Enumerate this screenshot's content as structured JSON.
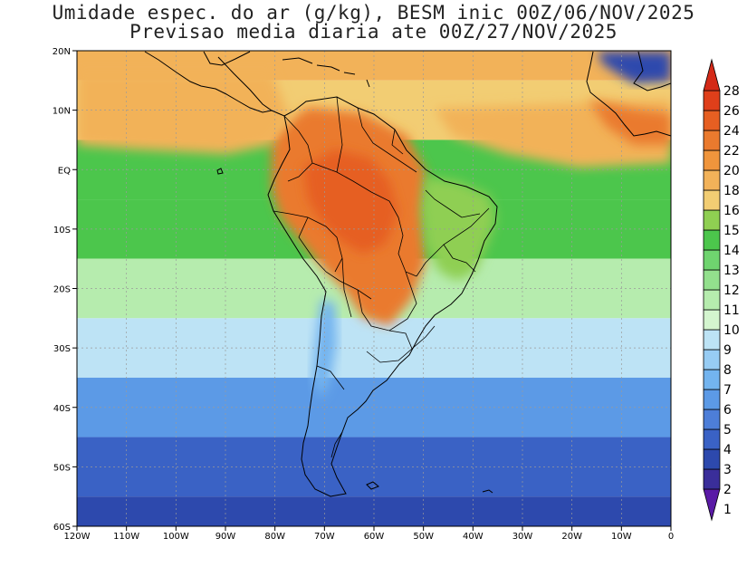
{
  "title_line1": "Umidade espec. do ar (g/kg), BESM inic 00Z/06/NOV/2025",
  "title_line2": "Previsao media diaria ate 00Z/27/NOV/2025",
  "lat_labels": [
    "20N",
    "10N",
    "EQ",
    "10S",
    "20S",
    "30S",
    "40S",
    "50S",
    "60S"
  ],
  "lon_labels": [
    "120W",
    "110W",
    "100W",
    "90W",
    "80W",
    "70W",
    "60W",
    "50W",
    "40W",
    "30W",
    "20W",
    "10W",
    "0"
  ],
  "colorbar": {
    "labels": [
      "1",
      "2",
      "3",
      "4",
      "5",
      "6",
      "7",
      "8",
      "9",
      "10",
      "11",
      "12",
      "13",
      "14",
      "15",
      "16",
      "18",
      "20",
      "22",
      "24",
      "26",
      "28"
    ],
    "colors": [
      "#5a1aa6",
      "#3a2e9a",
      "#2d49ad",
      "#3a62c5",
      "#4d7ed8",
      "#5c9ae6",
      "#73b4ef",
      "#97ccf4",
      "#bde3f5",
      "#d4f5cf",
      "#b6ecae",
      "#93e08d",
      "#6fd46f",
      "#4cc64c",
      "#8fcf52",
      "#f2cd73",
      "#f2b259",
      "#f0953c",
      "#ea7a2e",
      "#e65f22",
      "#df3f1a",
      "#d42a18"
    ]
  },
  "field": {
    "bands": [
      {
        "lat": 20,
        "value": 18
      },
      {
        "lat": 10,
        "value": 17
      },
      {
        "lat": 0,
        "value": 14
      },
      {
        "lat": -10,
        "value": 14
      },
      {
        "lat": -20,
        "value": 11
      },
      {
        "lat": -30,
        "value": 9
      },
      {
        "lat": -40,
        "value": 6
      },
      {
        "lat": -50,
        "value": 4
      },
      {
        "lat": -60,
        "value": 3
      }
    ],
    "regions": [
      {
        "name": "amazon",
        "value": 22
      },
      {
        "name": "amazon_core",
        "value": 24
      },
      {
        "name": "northeast_brazil",
        "value": 15
      },
      {
        "name": "andes_dry",
        "value": 7
      },
      {
        "name": "atlantic_tropical",
        "value": 18
      },
      {
        "name": "west_africa",
        "value": 22
      },
      {
        "name": "sahara",
        "value": 3
      }
    ]
  }
}
